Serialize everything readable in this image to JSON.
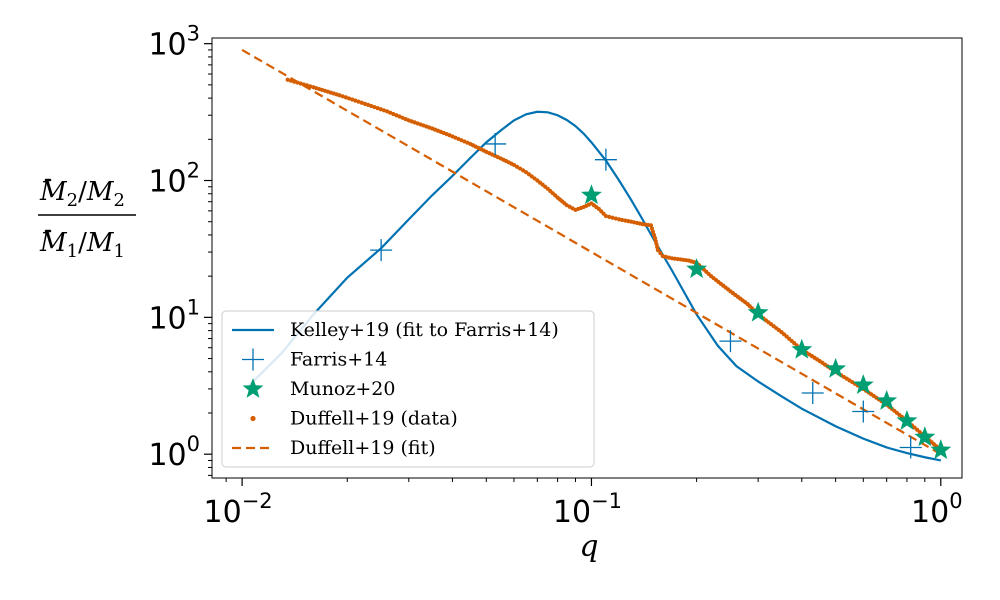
{
  "chart_data": {
    "type": "line",
    "xscale": "log",
    "yscale": "log",
    "xlim": [
      0.0082,
      1.15
    ],
    "ylim": [
      0.67,
      1100
    ],
    "x_ticks": [
      {
        "value": 0.01,
        "base": "10",
        "exp": "−2"
      },
      {
        "value": 0.1,
        "base": "10",
        "exp": "−1"
      },
      {
        "value": 1,
        "base": "10",
        "exp": "0"
      }
    ],
    "y_ticks": [
      {
        "value": 1,
        "base": "10",
        "exp": "0"
      },
      {
        "value": 10,
        "base": "10",
        "exp": "1"
      },
      {
        "value": 100,
        "base": "10",
        "exp": "2"
      },
      {
        "value": 1000,
        "base": "10",
        "exp": "3"
      }
    ],
    "xlabel": "q",
    "ylabel": {
      "num_M": "M",
      "num_sub1": "2",
      "num_slash": "/",
      "num_M2": "M",
      "num_sub2": "2",
      "den_M": "M",
      "den_sub1": "1",
      "den_slash": "/",
      "den_M2": "M",
      "den_sub2": "1"
    },
    "legend_position": "lower-left",
    "series": [
      {
        "name": "Kelley+19 (fit to Farris+14)",
        "style": "line",
        "color": "#0072b2",
        "x": [
          0.0105,
          0.013,
          0.016,
          0.02,
          0.025,
          0.03,
          0.035,
          0.04,
          0.045,
          0.05,
          0.055,
          0.06,
          0.065,
          0.07,
          0.075,
          0.08,
          0.085,
          0.09,
          0.095,
          0.1,
          0.11,
          0.12,
          0.13,
          0.14,
          0.15,
          0.17,
          0.2,
          0.23,
          0.26,
          0.3,
          0.35,
          0.4,
          0.5,
          0.6,
          0.7,
          0.8,
          0.9,
          1.0
        ],
        "y": [
          3.2,
          5.5,
          10.5,
          19.5,
          32,
          52,
          78,
          108,
          146,
          190,
          232,
          275,
          305,
          318,
          315,
          300,
          277,
          250,
          220,
          190,
          140,
          100,
          72,
          52,
          38,
          22,
          10.5,
          6.2,
          4.4,
          3.4,
          2.65,
          2.15,
          1.6,
          1.3,
          1.12,
          1.02,
          0.95,
          0.9
        ]
      },
      {
        "name": "Farris+14",
        "style": "plus",
        "color": "#0072b2",
        "x": [
          0.025,
          0.053,
          0.11,
          0.25,
          0.43,
          0.6,
          0.82
        ],
        "y": [
          31,
          185,
          142,
          6.7,
          2.8,
          2.05,
          1.12
        ]
      },
      {
        "name": "Munoz+20",
        "style": "star",
        "color": "#009e73",
        "x": [
          0.1,
          0.2,
          0.3,
          0.4,
          0.5,
          0.6,
          0.7,
          0.8,
          0.9,
          1.0
        ],
        "y": [
          78,
          22.5,
          10.8,
          5.8,
          4.2,
          3.2,
          2.45,
          1.75,
          1.33,
          1.07
        ]
      },
      {
        "name": "Duffell+19 (data)",
        "style": "dots",
        "color": "#d55e00",
        "x": [
          0.0135,
          0.016,
          0.019,
          0.022,
          0.026,
          0.03,
          0.035,
          0.04,
          0.045,
          0.05,
          0.055,
          0.06,
          0.065,
          0.07,
          0.075,
          0.08,
          0.085,
          0.09,
          0.095,
          0.1,
          0.105,
          0.11,
          0.12,
          0.13,
          0.14,
          0.148,
          0.152,
          0.155,
          0.16,
          0.17,
          0.18,
          0.19,
          0.2,
          0.22,
          0.25,
          0.28,
          0.3,
          0.35,
          0.4,
          0.45,
          0.5,
          0.6,
          0.7,
          0.8,
          0.9,
          1.0
        ],
        "y": [
          545,
          480,
          420,
          370,
          320,
          275,
          240,
          210,
          185,
          162,
          145,
          130,
          115,
          100,
          87,
          75,
          66,
          61,
          64,
          68,
          62,
          55,
          52,
          50,
          48,
          47,
          38,
          31,
          28,
          27,
          26.5,
          26,
          25,
          20,
          15.5,
          12.5,
          10.5,
          7.8,
          5.8,
          4.8,
          4.0,
          3.0,
          2.3,
          1.75,
          1.35,
          1.07
        ]
      },
      {
        "name": "Duffell+19 (fit)",
        "style": "dashed",
        "color": "#d55e00",
        "x": [
          0.01,
          1.0
        ],
        "y": [
          900,
          1.0
        ]
      }
    ]
  }
}
